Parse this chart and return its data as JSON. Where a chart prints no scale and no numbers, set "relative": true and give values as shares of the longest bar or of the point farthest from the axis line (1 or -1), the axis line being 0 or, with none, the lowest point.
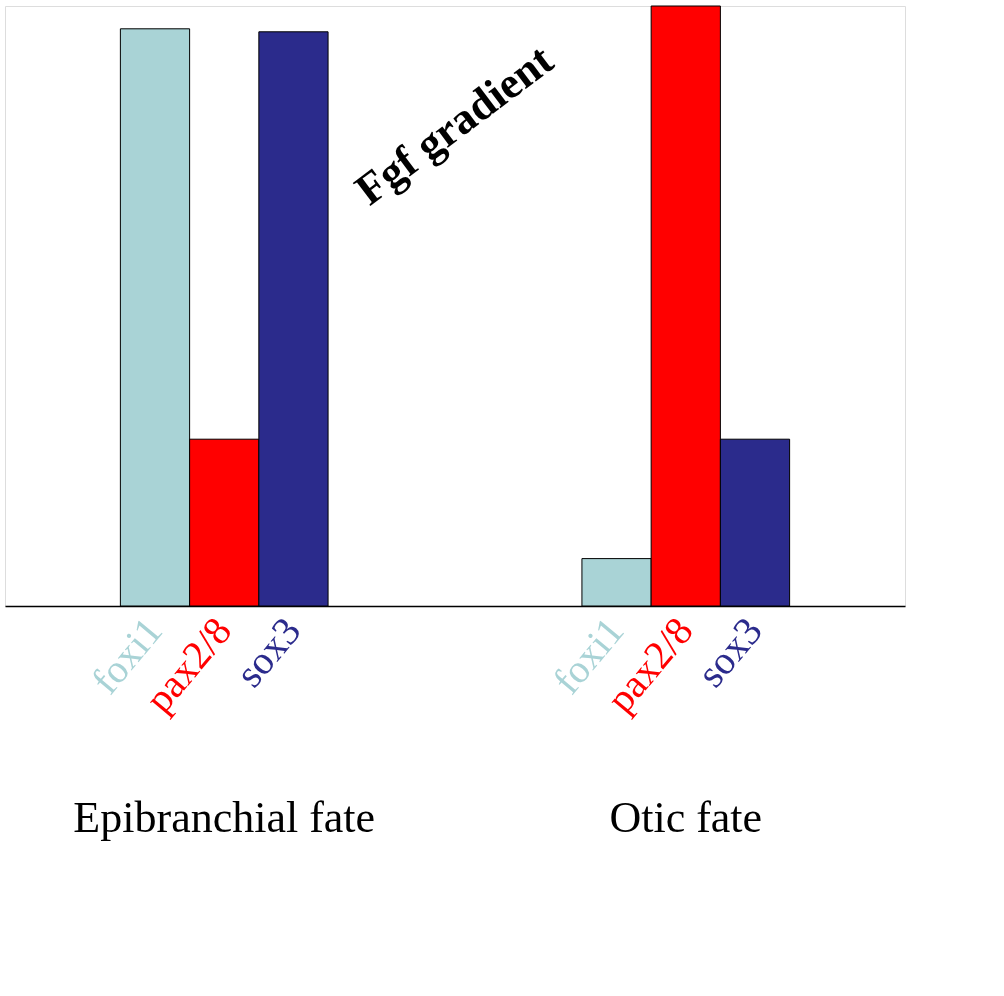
{
  "chart_data": {
    "type": "bar",
    "relative": true,
    "categories": [
      "Epibranchial fate",
      "Otic fate"
    ],
    "series": [
      {
        "name": "foxi1",
        "color": "#a9d3d6",
        "values": [
          0.962,
          0.079
        ]
      },
      {
        "name": "pax2/8",
        "color": "#ff0000",
        "values": [
          0.278,
          1
        ]
      },
      {
        "name": "sox3",
        "color": "#2b2b8c",
        "values": [
          0.957,
          0.278
        ]
      }
    ],
    "annotations": [
      "Fgf gradient"
    ]
  }
}
